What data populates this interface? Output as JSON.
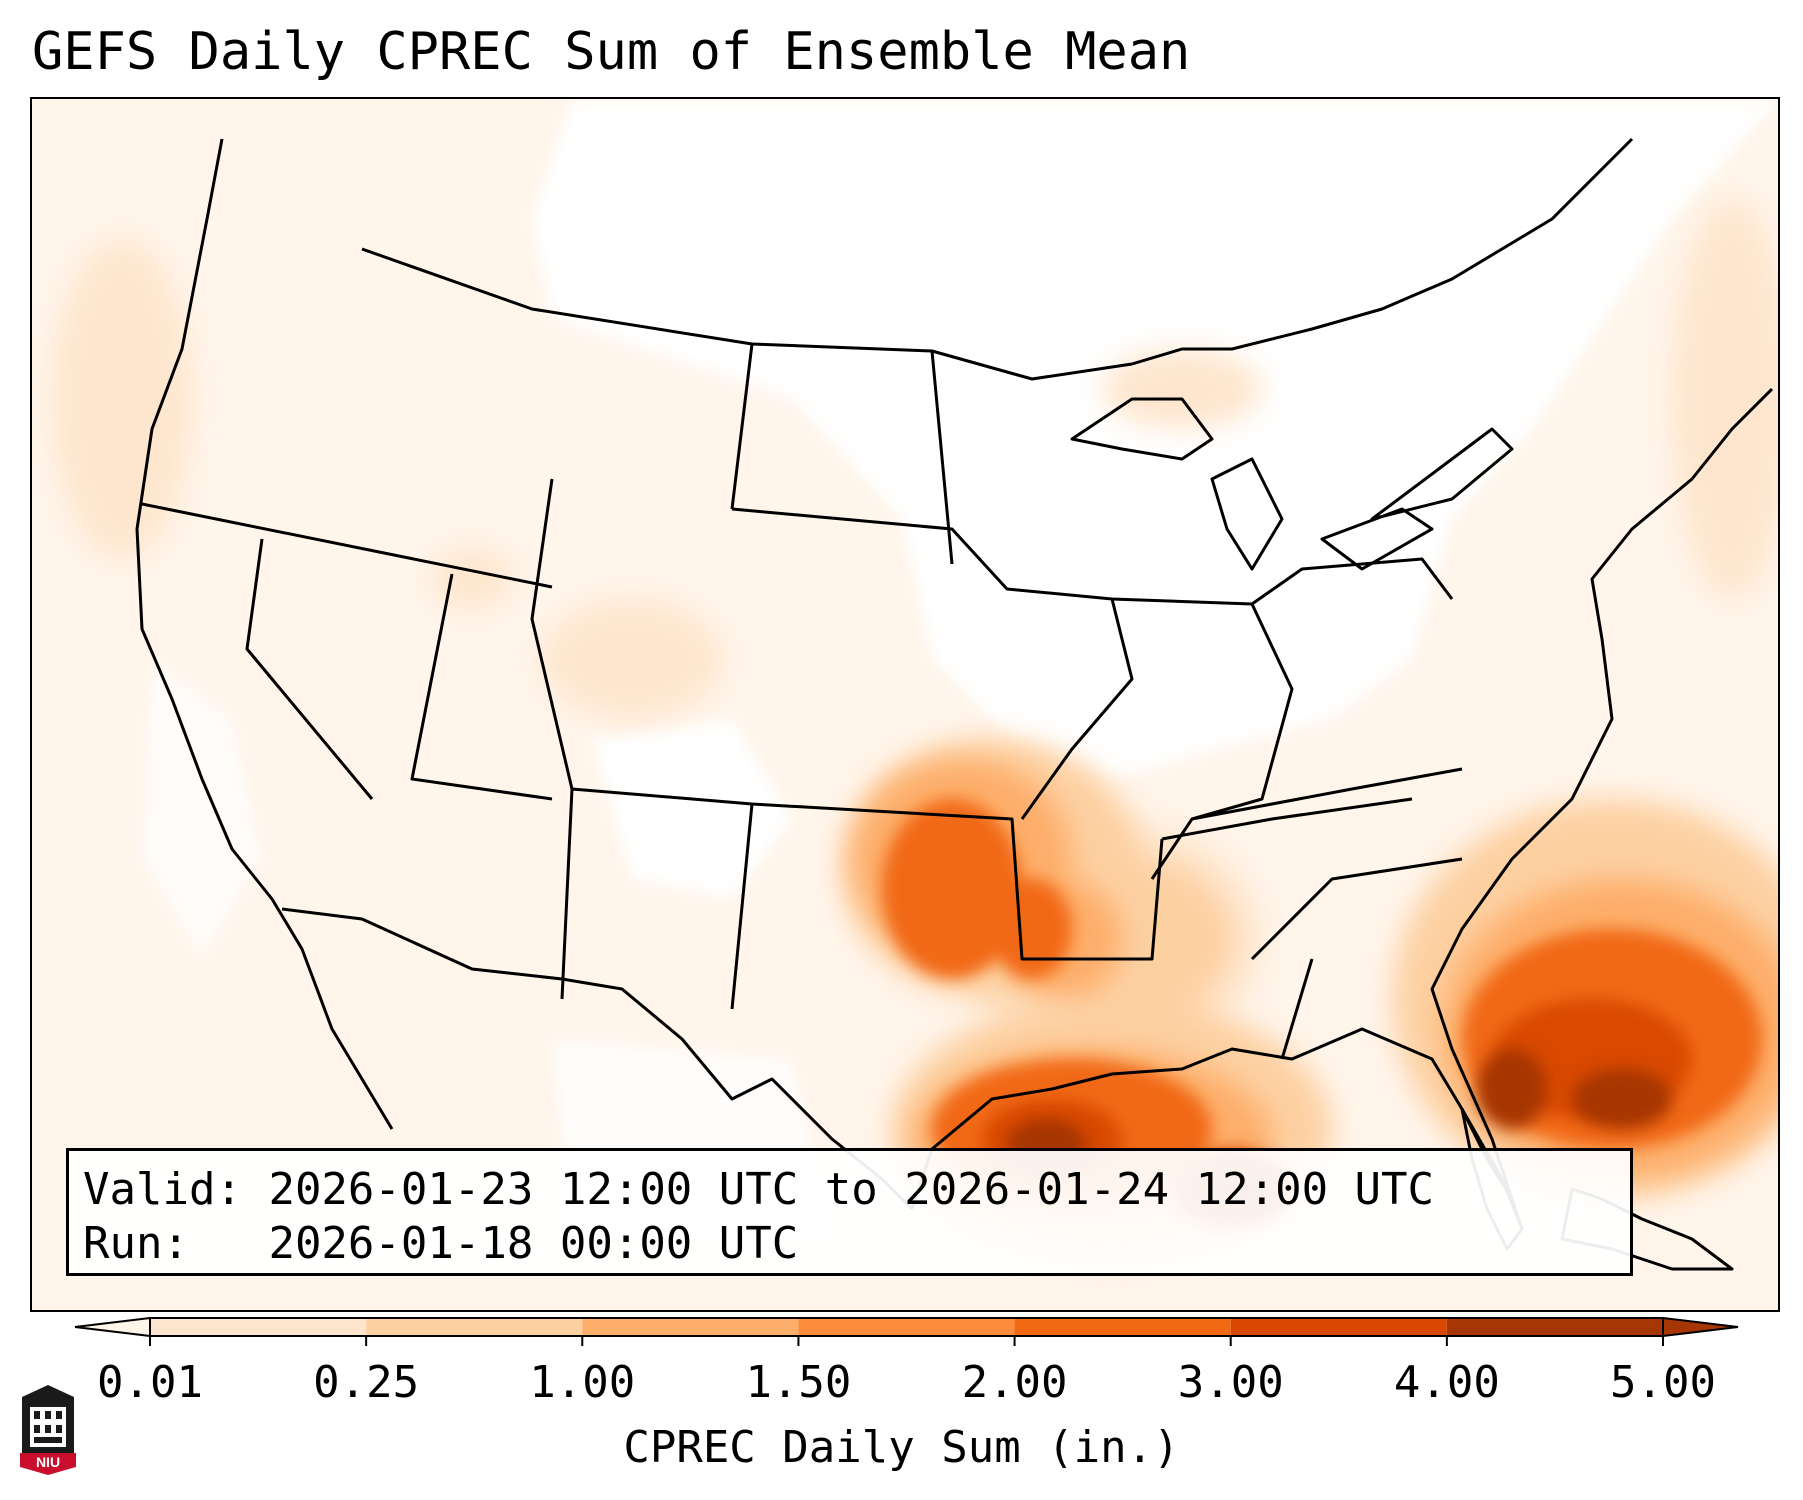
{
  "title": "GEFS Daily CPREC Sum of Ensemble Mean",
  "info": {
    "valid_label": "Valid:",
    "valid_value": "2026-01-23 12:00 UTC to 2026-01-24 12:00 UTC",
    "run_label": "Run:",
    "run_value": "2026-01-18 00:00 UTC"
  },
  "colorbar": {
    "label": "CPREC Daily Sum (in.)",
    "ticks": [
      "0.01",
      "0.25",
      "1.00",
      "1.50",
      "2.00",
      "3.00",
      "4.00",
      "5.00"
    ],
    "colors": [
      "#fff4ea",
      "#fee6ce",
      "#fdd0a2",
      "#fdae6b",
      "#fd8d3c",
      "#f16913",
      "#d94801",
      "#a63603"
    ],
    "extend": "both"
  },
  "logo": {
    "text": "NIU"
  },
  "map": {
    "projection": "Lambert Conformal (CONUS)",
    "field": "CPREC daily sum, ensemble mean",
    "units": "in.",
    "maxima_regions": [
      "eastern Oklahoma / Arkansas / Louisiana",
      "northwestern Gulf of Mexico",
      "off southeastern US coast / Bahamas"
    ]
  }
}
